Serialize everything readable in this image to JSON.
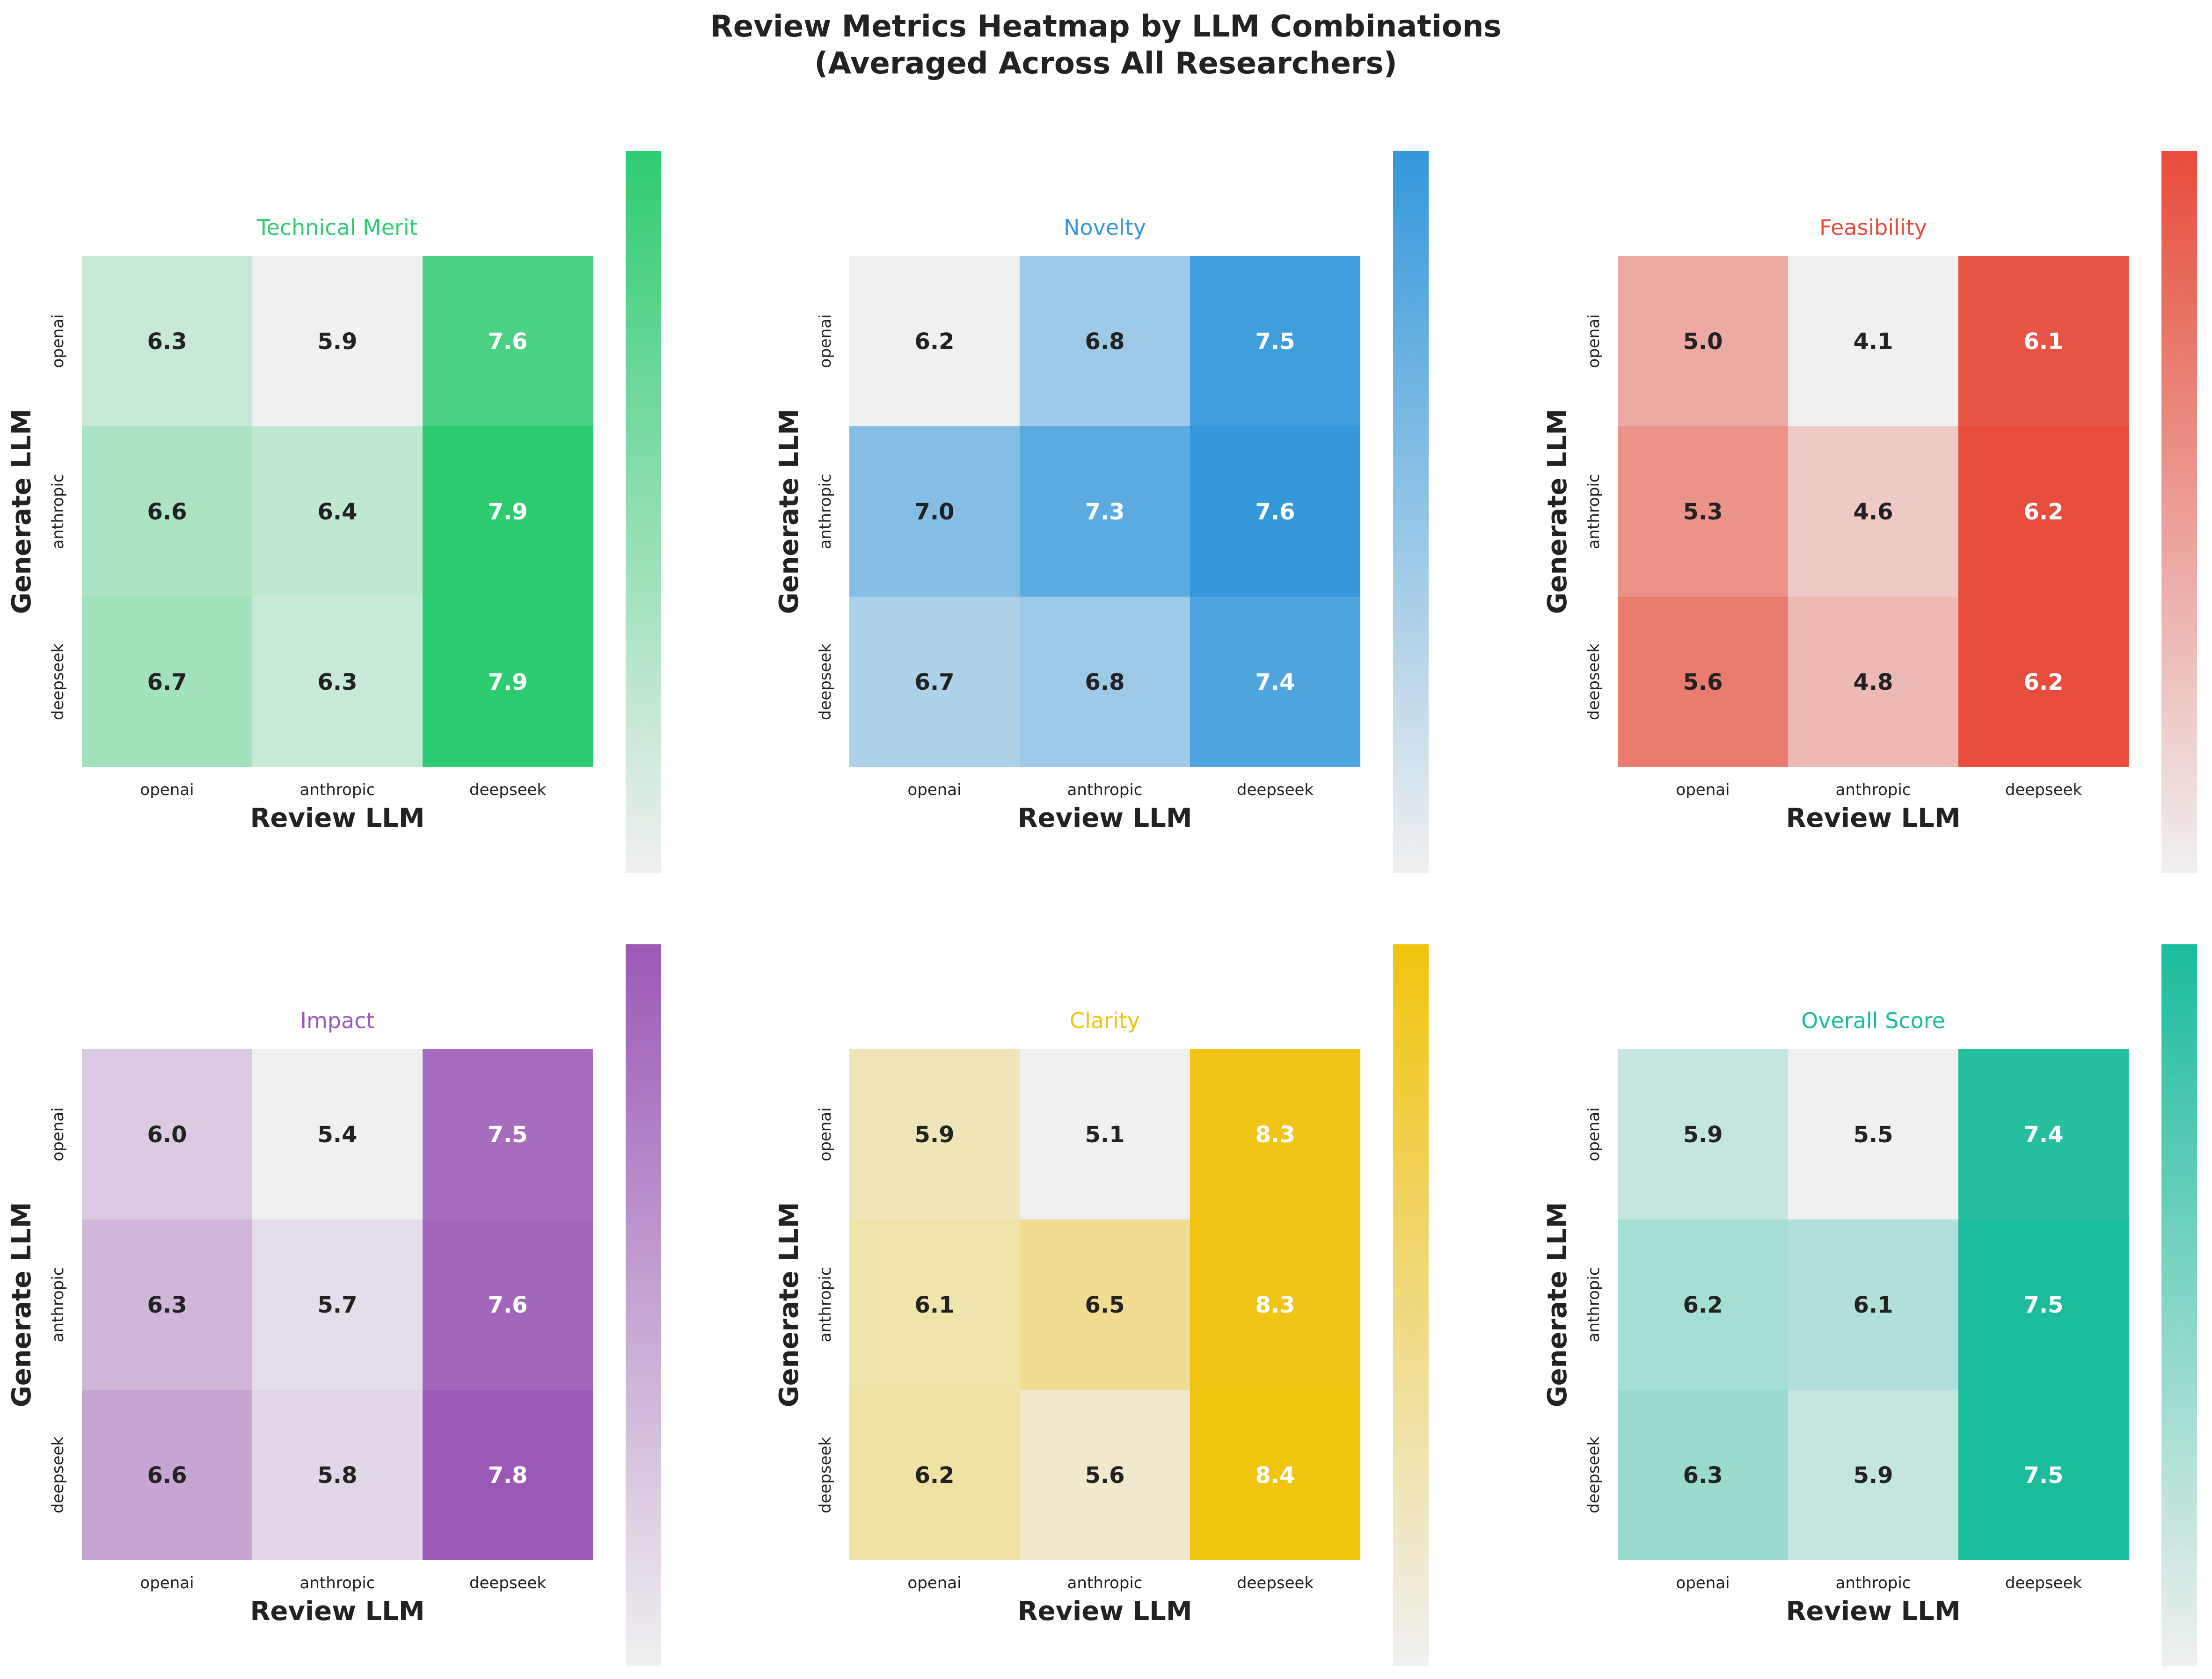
{
  "figure": {
    "title_line1": "Review Metrics Heatmap by LLM Combinations",
    "title_line2": "(Averaged Across All Researchers)"
  },
  "chart_data": [
    {
      "type": "heatmap",
      "title": "Technical Merit",
      "color": "#2ecc71",
      "xlabel": "Review LLM",
      "ylabel": "Generate LLM",
      "x_categories": [
        "openai",
        "anthropic",
        "deepseek"
      ],
      "y_categories": [
        "openai",
        "anthropic",
        "deepseek"
      ],
      "values": [
        [
          6.3,
          5.9,
          7.6
        ],
        [
          6.6,
          6.4,
          7.9
        ],
        [
          6.7,
          6.3,
          7.9
        ]
      ]
    },
    {
      "type": "heatmap",
      "title": "Novelty",
      "color": "#3498db",
      "xlabel": "Review LLM",
      "ylabel": "Generate LLM",
      "x_categories": [
        "openai",
        "anthropic",
        "deepseek"
      ],
      "y_categories": [
        "openai",
        "anthropic",
        "deepseek"
      ],
      "values": [
        [
          6.2,
          6.8,
          7.5
        ],
        [
          7.0,
          7.3,
          7.6
        ],
        [
          6.7,
          6.8,
          7.4
        ]
      ]
    },
    {
      "type": "heatmap",
      "title": "Feasibility",
      "color": "#e74c3c",
      "xlabel": "Review LLM",
      "ylabel": "Generate LLM",
      "x_categories": [
        "openai",
        "anthropic",
        "deepseek"
      ],
      "y_categories": [
        "openai",
        "anthropic",
        "deepseek"
      ],
      "values": [
        [
          5.0,
          4.1,
          6.1
        ],
        [
          5.3,
          4.6,
          6.2
        ],
        [
          5.6,
          4.8,
          6.2
        ]
      ]
    },
    {
      "type": "heatmap",
      "title": "Impact",
      "color": "#9b59b6",
      "xlabel": "Review LLM",
      "ylabel": "Generate LLM",
      "x_categories": [
        "openai",
        "anthropic",
        "deepseek"
      ],
      "y_categories": [
        "openai",
        "anthropic",
        "deepseek"
      ],
      "values": [
        [
          6.0,
          5.4,
          7.5
        ],
        [
          6.3,
          5.7,
          7.6
        ],
        [
          6.6,
          5.8,
          7.8
        ]
      ]
    },
    {
      "type": "heatmap",
      "title": "Clarity",
      "color": "#f1c40f",
      "xlabel": "Review LLM",
      "ylabel": "Generate LLM",
      "x_categories": [
        "openai",
        "anthropic",
        "deepseek"
      ],
      "y_categories": [
        "openai",
        "anthropic",
        "deepseek"
      ],
      "values": [
        [
          5.9,
          5.1,
          8.3
        ],
        [
          6.1,
          6.5,
          8.3
        ],
        [
          6.2,
          5.6,
          8.4
        ]
      ]
    },
    {
      "type": "heatmap",
      "title": "Overall Score",
      "color": "#1abc9c",
      "xlabel": "Review LLM",
      "ylabel": "Generate LLM",
      "x_categories": [
        "openai",
        "anthropic",
        "deepseek"
      ],
      "y_categories": [
        "openai",
        "anthropic",
        "deepseek"
      ],
      "values": [
        [
          5.9,
          5.5,
          7.4
        ],
        [
          6.2,
          6.1,
          7.5
        ],
        [
          6.3,
          5.9,
          7.5
        ]
      ]
    }
  ]
}
